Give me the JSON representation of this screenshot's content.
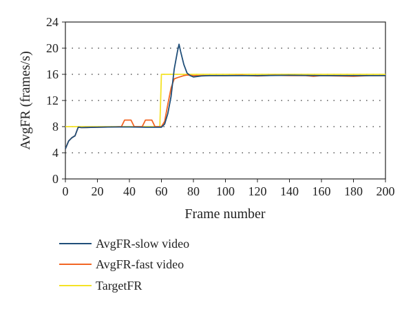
{
  "chart_data": {
    "type": "line",
    "xlabel": "Frame number",
    "ylabel": "AvgFR (frames/s)",
    "xlim": [
      0,
      200
    ],
    "ylim": [
      0,
      24
    ],
    "x_ticks": [
      "0",
      "20",
      "40",
      "60",
      "80",
      "100",
      "120",
      "140",
      "160",
      "180",
      "200"
    ],
    "y_ticks": [
      "0",
      "4",
      "8",
      "12",
      "16",
      "20",
      "24"
    ],
    "grid": "dotted horizontal",
    "legend_position": "bottom-left",
    "series": [
      {
        "name": "AvgFR-slow video",
        "color": "#1f4e79",
        "points": [
          [
            0,
            4.6
          ],
          [
            2,
            5.8
          ],
          [
            4,
            6.3
          ],
          [
            6,
            6.6
          ],
          [
            8,
            7.9
          ],
          [
            10,
            7.85
          ],
          [
            20,
            7.9
          ],
          [
            30,
            7.95
          ],
          [
            40,
            7.95
          ],
          [
            50,
            7.9
          ],
          [
            55,
            7.9
          ],
          [
            58,
            7.9
          ],
          [
            60,
            7.9
          ],
          [
            62,
            8.4
          ],
          [
            64,
            10
          ],
          [
            66,
            12.6
          ],
          [
            68,
            16.8
          ],
          [
            70,
            19.5
          ],
          [
            71,
            20.6
          ],
          [
            72,
            19.5
          ],
          [
            74,
            17.5
          ],
          [
            76,
            16.2
          ],
          [
            78,
            15.8
          ],
          [
            80,
            15.6
          ],
          [
            85,
            15.75
          ],
          [
            90,
            15.8
          ],
          [
            100,
            15.8
          ],
          [
            120,
            15.8
          ],
          [
            140,
            15.85
          ],
          [
            160,
            15.8
          ],
          [
            180,
            15.8
          ],
          [
            200,
            15.8
          ]
        ]
      },
      {
        "name": "AvgFR-fast video",
        "color": "#f26522",
        "points": [
          [
            0,
            4.6
          ],
          [
            2,
            5.8
          ],
          [
            4,
            6.3
          ],
          [
            6,
            6.6
          ],
          [
            8,
            7.9
          ],
          [
            10,
            7.85
          ],
          [
            20,
            7.9
          ],
          [
            30,
            7.95
          ],
          [
            35,
            8
          ],
          [
            37,
            9
          ],
          [
            41,
            9
          ],
          [
            43,
            8
          ],
          [
            48,
            8
          ],
          [
            50,
            9
          ],
          [
            54,
            9
          ],
          [
            56,
            8
          ],
          [
            60,
            8
          ],
          [
            62,
            8.8
          ],
          [
            64,
            11.4
          ],
          [
            66,
            13.9
          ],
          [
            68,
            15.3
          ],
          [
            70,
            15.5
          ],
          [
            74,
            15.8
          ],
          [
            76,
            15.9
          ],
          [
            80,
            15.8
          ],
          [
            90,
            15.8
          ],
          [
            100,
            15.8
          ],
          [
            110,
            15.85
          ],
          [
            120,
            15.75
          ],
          [
            130,
            15.85
          ],
          [
            140,
            15.8
          ],
          [
            150,
            15.8
          ],
          [
            155,
            15.7
          ],
          [
            160,
            15.8
          ],
          [
            170,
            15.75
          ],
          [
            180,
            15.7
          ],
          [
            190,
            15.8
          ],
          [
            200,
            15.8
          ]
        ]
      },
      {
        "name": "TargetFR",
        "color": "#f4e225",
        "points": [
          [
            0,
            8
          ],
          [
            59,
            8
          ],
          [
            60,
            16
          ],
          [
            200,
            16
          ]
        ]
      }
    ]
  }
}
